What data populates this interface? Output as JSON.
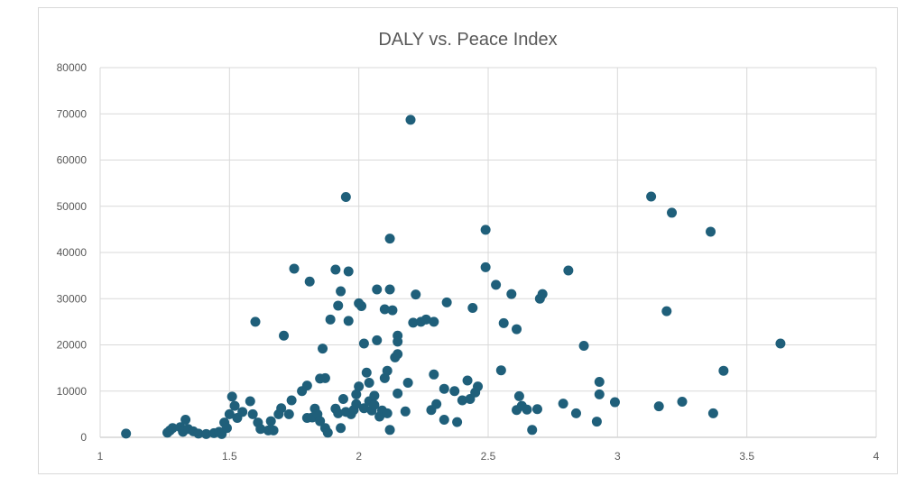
{
  "chart_data": {
    "type": "scatter",
    "title": "DALY vs. Peace Index",
    "xlabel": "",
    "ylabel": "",
    "xlim": [
      1,
      4
    ],
    "ylim": [
      0,
      80000
    ],
    "x_ticks": [
      "1",
      "1.5",
      "2",
      "2.5",
      "3",
      "3.5",
      "4"
    ],
    "y_ticks": [
      "0",
      "10000",
      "20000",
      "30000",
      "40000",
      "50000",
      "60000",
      "70000",
      "80000"
    ],
    "grid": true,
    "legend": "none",
    "marker_color": "#1f5f7a",
    "gridline_color": "#d9d9d9",
    "points": [
      [
        1.1,
        800
      ],
      [
        1.26,
        1000
      ],
      [
        1.27,
        1500
      ],
      [
        1.28,
        2000
      ],
      [
        1.31,
        2200
      ],
      [
        1.32,
        1200
      ],
      [
        1.33,
        3800
      ],
      [
        1.34,
        1800
      ],
      [
        1.36,
        1300
      ],
      [
        1.38,
        800
      ],
      [
        1.41,
        700
      ],
      [
        1.44,
        900
      ],
      [
        1.46,
        1200
      ],
      [
        1.47,
        700
      ],
      [
        1.48,
        3200
      ],
      [
        1.49,
        2000
      ],
      [
        1.5,
        5000
      ],
      [
        1.51,
        8800
      ],
      [
        1.52,
        6800
      ],
      [
        1.53,
        4200
      ],
      [
        1.55,
        5500
      ],
      [
        1.58,
        7800
      ],
      [
        1.59,
        5000
      ],
      [
        1.61,
        3200
      ],
      [
        1.62,
        1800
      ],
      [
        1.6,
        25000
      ],
      [
        1.65,
        1500
      ],
      [
        1.66,
        3500
      ],
      [
        1.67,
        1500
      ],
      [
        1.69,
        5000
      ],
      [
        1.7,
        6300
      ],
      [
        1.71,
        22000
      ],
      [
        1.73,
        5000
      ],
      [
        1.74,
        8000
      ],
      [
        1.75,
        36500
      ],
      [
        1.78,
        10000
      ],
      [
        1.8,
        11200
      ],
      [
        1.81,
        33700
      ],
      [
        1.8,
        4200
      ],
      [
        1.82,
        4300
      ],
      [
        1.83,
        6200
      ],
      [
        1.84,
        5000
      ],
      [
        1.85,
        3500
      ],
      [
        1.85,
        12700
      ],
      [
        1.86,
        19200
      ],
      [
        1.87,
        12800
      ],
      [
        1.87,
        2000
      ],
      [
        1.88,
        1000
      ],
      [
        1.89,
        25500
      ],
      [
        1.91,
        36300
      ],
      [
        1.91,
        6200
      ],
      [
        1.92,
        5200
      ],
      [
        1.92,
        28500
      ],
      [
        1.93,
        31600
      ],
      [
        1.93,
        2000
      ],
      [
        1.94,
        8300
      ],
      [
        1.95,
        5500
      ],
      [
        1.95,
        52000
      ],
      [
        1.96,
        35900
      ],
      [
        1.96,
        25200
      ],
      [
        1.97,
        5000
      ],
      [
        1.98,
        5900
      ],
      [
        1.99,
        7200
      ],
      [
        1.99,
        9300
      ],
      [
        2.0,
        29000
      ],
      [
        2.0,
        11000
      ],
      [
        2.01,
        28400
      ],
      [
        2.02,
        6300
      ],
      [
        2.02,
        20300
      ],
      [
        2.03,
        14000
      ],
      [
        2.04,
        7800
      ],
      [
        2.04,
        11800
      ],
      [
        2.05,
        5800
      ],
      [
        2.06,
        9000
      ],
      [
        2.06,
        7000
      ],
      [
        2.07,
        32000
      ],
      [
        2.07,
        21000
      ],
      [
        2.08,
        4500
      ],
      [
        2.09,
        5800
      ],
      [
        2.1,
        27700
      ],
      [
        2.1,
        12800
      ],
      [
        2.11,
        5200
      ],
      [
        2.11,
        14400
      ],
      [
        2.12,
        1600
      ],
      [
        2.12,
        32000
      ],
      [
        2.12,
        43000
      ],
      [
        2.13,
        27500
      ],
      [
        2.14,
        17300
      ],
      [
        2.15,
        22000
      ],
      [
        2.15,
        20700
      ],
      [
        2.15,
        18000
      ],
      [
        2.15,
        9500
      ],
      [
        2.18,
        5600
      ],
      [
        2.19,
        11800
      ],
      [
        2.2,
        68700
      ],
      [
        2.21,
        24800
      ],
      [
        2.22,
        30900
      ],
      [
        2.24,
        25000
      ],
      [
        2.26,
        25500
      ],
      [
        2.28,
        5900
      ],
      [
        2.29,
        13600
      ],
      [
        2.29,
        25000
      ],
      [
        2.3,
        7200
      ],
      [
        2.33,
        10500
      ],
      [
        2.33,
        3800
      ],
      [
        2.34,
        29200
      ],
      [
        2.37,
        10000
      ],
      [
        2.38,
        3300
      ],
      [
        2.4,
        8000
      ],
      [
        2.42,
        12300
      ],
      [
        2.43,
        8300
      ],
      [
        2.44,
        28000
      ],
      [
        2.45,
        9700
      ],
      [
        2.46,
        11000
      ],
      [
        2.49,
        36800
      ],
      [
        2.49,
        44900
      ],
      [
        2.53,
        33000
      ],
      [
        2.55,
        14500
      ],
      [
        2.56,
        24700
      ],
      [
        2.59,
        31000
      ],
      [
        2.61,
        5900
      ],
      [
        2.61,
        23400
      ],
      [
        2.62,
        8900
      ],
      [
        2.63,
        6800
      ],
      [
        2.65,
        6000
      ],
      [
        2.67,
        1600
      ],
      [
        2.69,
        6100
      ],
      [
        2.7,
        30000
      ],
      [
        2.71,
        31000
      ],
      [
        2.79,
        7300
      ],
      [
        2.81,
        36100
      ],
      [
        2.84,
        5200
      ],
      [
        2.87,
        19800
      ],
      [
        2.92,
        3400
      ],
      [
        2.93,
        9300
      ],
      [
        2.93,
        12000
      ],
      [
        2.99,
        7600
      ],
      [
        3.13,
        52100
      ],
      [
        3.16,
        6700
      ],
      [
        3.19,
        27300
      ],
      [
        3.21,
        48600
      ],
      [
        3.25,
        7700
      ],
      [
        3.36,
        44500
      ],
      [
        3.37,
        5200
      ],
      [
        3.41,
        14400
      ],
      [
        3.63,
        20300
      ]
    ]
  }
}
